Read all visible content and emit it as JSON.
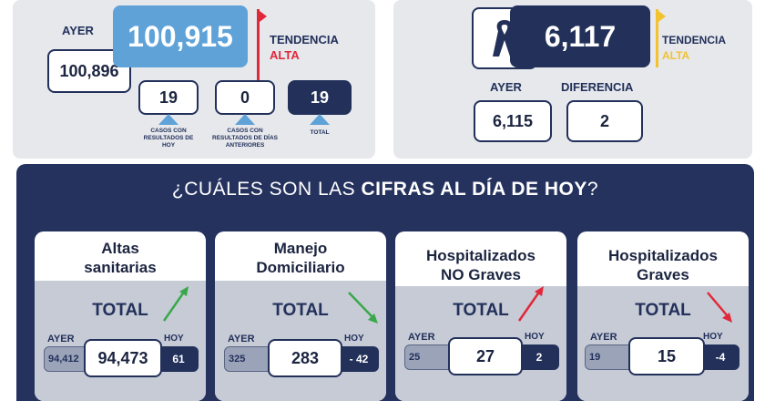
{
  "top_left": {
    "ayer_label": "AYER",
    "ayer_value": "100,896",
    "main_value": "100,915",
    "tendencia_label": "TENDENCIA",
    "tendencia_value": "ALTA",
    "casos_hoy_value": "19",
    "casos_hoy_label": "CASOS CON RESULTADOS DE HOY",
    "casos_ant_value": "0",
    "casos_ant_label": "CASOS CON RESULTADOS DE DÍAS ANTERIORES",
    "total_value": "19",
    "total_label": "TOTAL"
  },
  "top_right": {
    "main_value": "6,117",
    "tendencia_label": "TENDENCIA",
    "tendencia_value": "ALTA",
    "ayer_label": "AYER",
    "ayer_value": "6,115",
    "diferencia_label": "DIFERENCIA",
    "diferencia_value": "2"
  },
  "question": {
    "prefix": "¿CUÁLES SON LAS ",
    "bold": "CIFRAS AL DÍA DE HOY",
    "suffix": "?"
  },
  "cards": [
    {
      "title_line1": "Altas",
      "title_line2": "sanitarias",
      "total_label": "TOTAL",
      "ayer_label": "AYER",
      "ayer_value": "94,412",
      "value": "94,473",
      "hoy_label": "HOY",
      "hoy_value": "61",
      "trend": "up"
    },
    {
      "title_line1": "Manejo",
      "title_line2": "Domiciliario",
      "total_label": "TOTAL",
      "ayer_label": "AYER",
      "ayer_value": "325",
      "value": "283",
      "hoy_label": "HOY",
      "hoy_value": "- 42",
      "trend": "down"
    },
    {
      "title_line1": "Hospitalizados",
      "title_line2": "NO Graves",
      "total_label": "TOTAL",
      "ayer_label": "AYER",
      "ayer_value": "25",
      "value": "27",
      "hoy_label": "HOY",
      "hoy_value": "2",
      "trend": "up"
    },
    {
      "title_line1": "Hospitalizados",
      "title_line2": "Graves",
      "total_label": "TOTAL",
      "ayer_label": "AYER",
      "ayer_value": "19",
      "value": "15",
      "hoy_label": "HOY",
      "hoy_value": "-4",
      "trend": "down"
    }
  ],
  "colors": {
    "navy": "#22305a",
    "blue": "#5ea2d8",
    "red": "#e0283a",
    "yellow": "#f2c230",
    "green": "#3aa84a"
  }
}
